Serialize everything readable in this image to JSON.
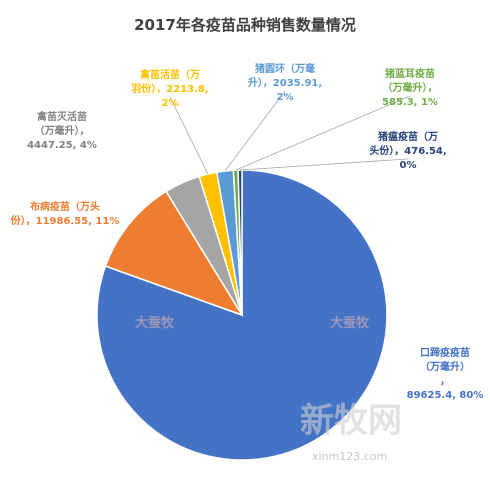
{
  "chart_data": {
    "type": "pie",
    "title": "2017年各疫苗品种销售数量情况",
    "slices": [
      {
        "label_lines": [
          "口蹄疫疫苗",
          "（万毫升）",
          "，",
          "89625.4, 80%"
        ],
        "value": 89625.4,
        "percent": 80,
        "color": "#4472C4"
      },
      {
        "label_lines": [
          "布病疫苗（万头",
          "份），11986.55, 11%"
        ],
        "value": 11986.55,
        "percent": 11,
        "color": "#ED7D31"
      },
      {
        "label_lines": [
          "禽苗灭活苗",
          "（万毫升），",
          "4447.25, 4%"
        ],
        "value": 4447.25,
        "percent": 4,
        "color": "#A5A5A5"
      },
      {
        "label_lines": [
          "禽苗活苗（万",
          "羽份），2213.8,",
          "2%"
        ],
        "value": 2213.8,
        "percent": 2,
        "color": "#FFC000"
      },
      {
        "label_lines": [
          "猪圆环（万毫",
          "升），2035.91,",
          "2%"
        ],
        "value": 2035.91,
        "percent": 2,
        "color": "#5B9BD5"
      },
      {
        "label_lines": [
          "猪蓝耳疫苗",
          "（万毫升），",
          "585.3, 1%"
        ],
        "value": 585.3,
        "percent": 1,
        "color": "#70AD47"
      },
      {
        "label_lines": [
          "猪瘟疫苗（万",
          "头份），476.54,",
          "0%"
        ],
        "value": 476.54,
        "percent": 0,
        "color": "#264478"
      }
    ]
  },
  "watermarks": {
    "logo_a": "大蚕牧",
    "logo_b": "大蚕牧",
    "brand": "新牧网",
    "site": "xinm123.com"
  }
}
